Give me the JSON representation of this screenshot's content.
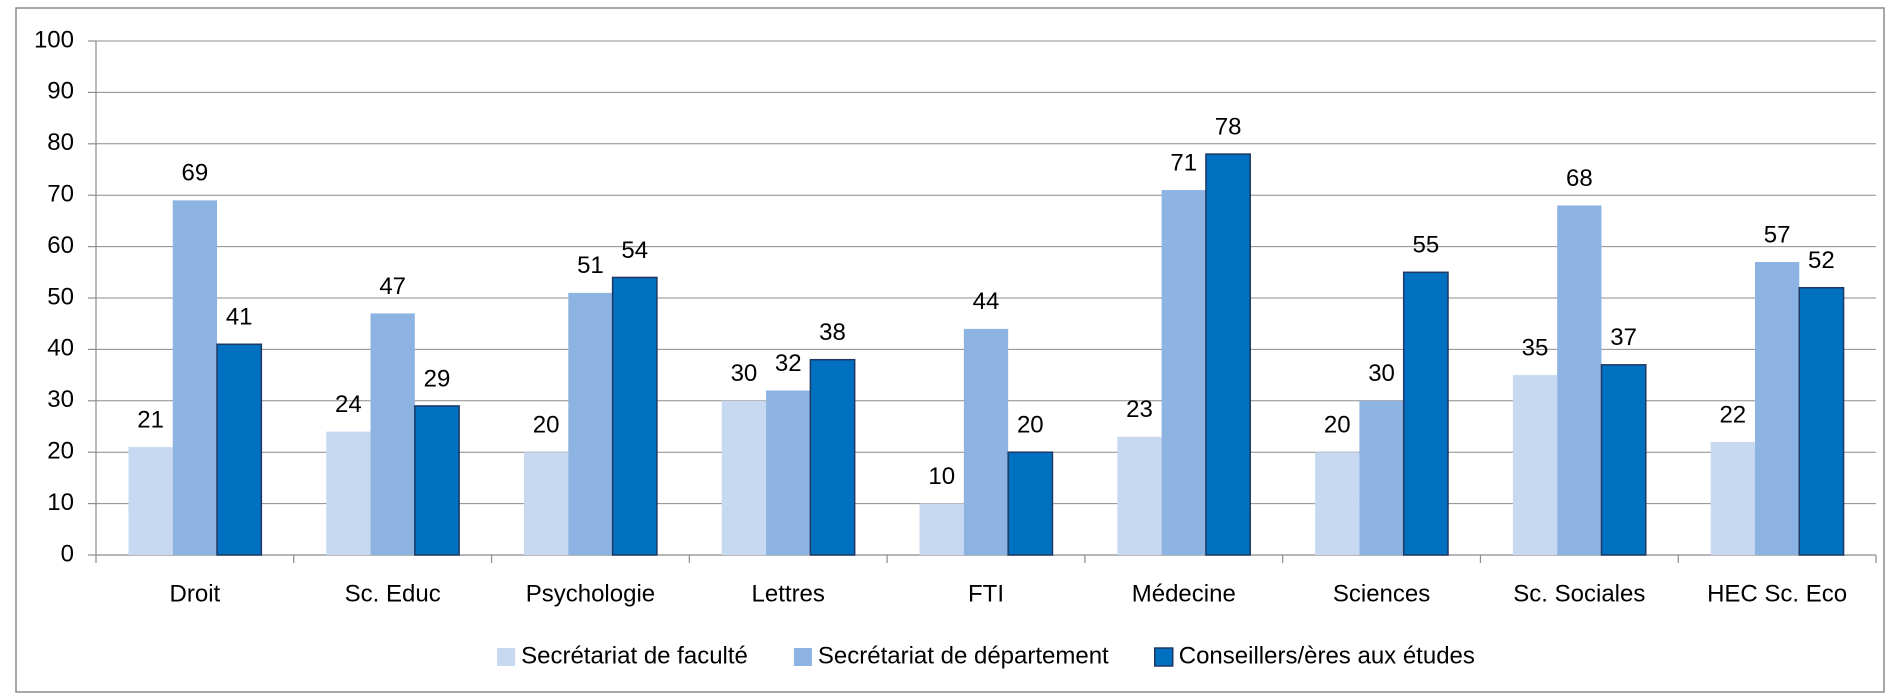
{
  "chart_data": {
    "type": "bar",
    "categories": [
      "Droit",
      "Sc. Educ",
      "Psychologie",
      "Lettres",
      "FTI",
      "Médecine",
      "Sciences",
      "Sc. Sociales",
      "HEC Sc. Eco"
    ],
    "series": [
      {
        "name": "Secrétariat de faculté",
        "color": "#c6d9f1",
        "values": [
          21,
          24,
          20,
          30,
          10,
          23,
          20,
          35,
          22
        ]
      },
      {
        "name": "Secrétariat de département",
        "color": "#8db3e2",
        "values": [
          69,
          47,
          51,
          32,
          44,
          71,
          30,
          68,
          57
        ]
      },
      {
        "name": "Conseillers/ères aux études",
        "color": "#0070c0",
        "values": [
          41,
          29,
          54,
          38,
          20,
          78,
          55,
          37,
          52
        ]
      }
    ],
    "ylim": [
      0,
      100
    ],
    "yticks": [
      0,
      10,
      20,
      30,
      40,
      50,
      60,
      70,
      80,
      90,
      100
    ],
    "grid": true,
    "legend": "bottom"
  }
}
